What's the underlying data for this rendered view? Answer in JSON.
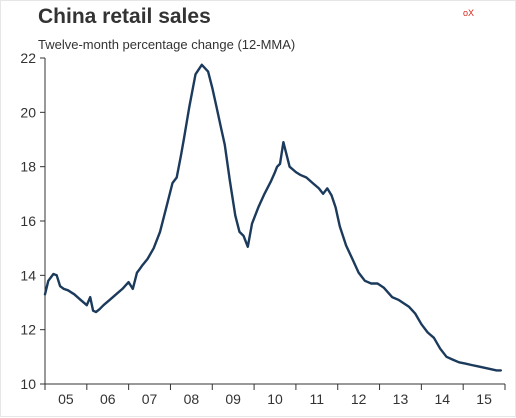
{
  "header": {
    "title": "China retail sales",
    "subtitle": "Twelve-month percentage change (12-MMA)",
    "corner_mark": "oX"
  },
  "colors": {
    "line": "#1b3a5c",
    "axis": "#333333",
    "corner_mark": "#d9261c"
  },
  "chart_data": {
    "type": "line",
    "title": "China retail sales",
    "subtitle": "Twelve-month percentage change (12-MMA)",
    "xlabel": "",
    "ylabel": "",
    "xlim": [
      2005.0,
      2016.0
    ],
    "ylim": [
      10,
      22
    ],
    "yticks": [
      10,
      12,
      14,
      16,
      18,
      20,
      22
    ],
    "ytick_labels": [
      "10",
      "12",
      "14",
      "16",
      "18",
      "20",
      "22"
    ],
    "xtick_labels": [
      {
        "x": 2005.5,
        "label": "05"
      },
      {
        "x": 2006.5,
        "label": "06"
      },
      {
        "x": 2007.5,
        "label": "07"
      },
      {
        "x": 2008.5,
        "label": "08"
      },
      {
        "x": 2009.5,
        "label": "09"
      },
      {
        "x": 2010.5,
        "label": "10"
      },
      {
        "x": 2011.5,
        "label": "11"
      },
      {
        "x": 2012.5,
        "label": "12"
      },
      {
        "x": 2013.5,
        "label": "13"
      },
      {
        "x": 2014.5,
        "label": "14"
      },
      {
        "x": 2015.5,
        "label": "15"
      }
    ],
    "grid": false,
    "legend": "none",
    "series": [
      {
        "x": [
          2005.0,
          2005.08,
          2005.2,
          2005.28,
          2005.36,
          2005.45,
          2005.55,
          2005.7,
          2005.85,
          2006.0,
          2006.08,
          2006.15,
          2006.22,
          2006.3,
          2006.4,
          2006.55,
          2006.7,
          2006.85,
          2007.0,
          2007.1,
          2007.2,
          2007.25,
          2007.32,
          2007.45,
          2007.6,
          2007.75,
          2007.9,
          2008.05,
          2008.15,
          2008.25,
          2008.32,
          2008.45,
          2008.6,
          2008.75,
          2008.9,
          2009.0,
          2009.1,
          2009.2,
          2009.3,
          2009.42,
          2009.55,
          2009.65,
          2009.75,
          2009.85,
          2009.95,
          2010.1,
          2010.25,
          2010.4,
          2010.5,
          2010.55,
          2010.62,
          2010.7,
          2010.85,
          2011.0,
          2011.1,
          2011.25,
          2011.4,
          2011.55,
          2011.65,
          2011.75,
          2011.85,
          2011.95,
          2012.05,
          2012.2,
          2012.35,
          2012.5,
          2012.65,
          2012.8,
          2012.95,
          2013.1,
          2013.3,
          2013.45,
          2013.55,
          2013.7,
          2013.85,
          2014.0,
          2014.15,
          2014.3,
          2014.45,
          2014.6,
          2014.75,
          2014.9,
          2015.05,
          2015.2,
          2015.35,
          2015.5,
          2015.65,
          2015.8,
          2015.9
        ],
        "values": [
          13.3,
          13.8,
          14.05,
          14.0,
          13.6,
          13.5,
          13.45,
          13.3,
          13.1,
          12.9,
          13.2,
          12.7,
          12.65,
          12.75,
          12.9,
          13.1,
          13.3,
          13.5,
          13.75,
          13.5,
          14.1,
          14.2,
          14.35,
          14.6,
          15.0,
          15.6,
          16.5,
          17.4,
          17.6,
          18.4,
          19.0,
          20.2,
          21.4,
          21.75,
          21.5,
          20.9,
          20.2,
          19.5,
          18.8,
          17.5,
          16.2,
          15.6,
          15.45,
          15.05,
          15.9,
          16.5,
          17.0,
          17.45,
          17.8,
          18.0,
          18.1,
          18.9,
          18.0,
          17.8,
          17.7,
          17.6,
          17.4,
          17.2,
          17.0,
          17.2,
          16.95,
          16.5,
          15.8,
          15.1,
          14.6,
          14.1,
          13.8,
          13.7,
          13.7,
          13.55,
          13.2,
          13.1,
          13.0,
          12.85,
          12.6,
          12.2,
          11.9,
          11.7,
          11.3,
          11.0,
          10.9,
          10.8,
          10.75,
          10.7,
          10.65,
          10.6,
          10.55,
          10.5,
          10.5
        ]
      }
    ]
  }
}
